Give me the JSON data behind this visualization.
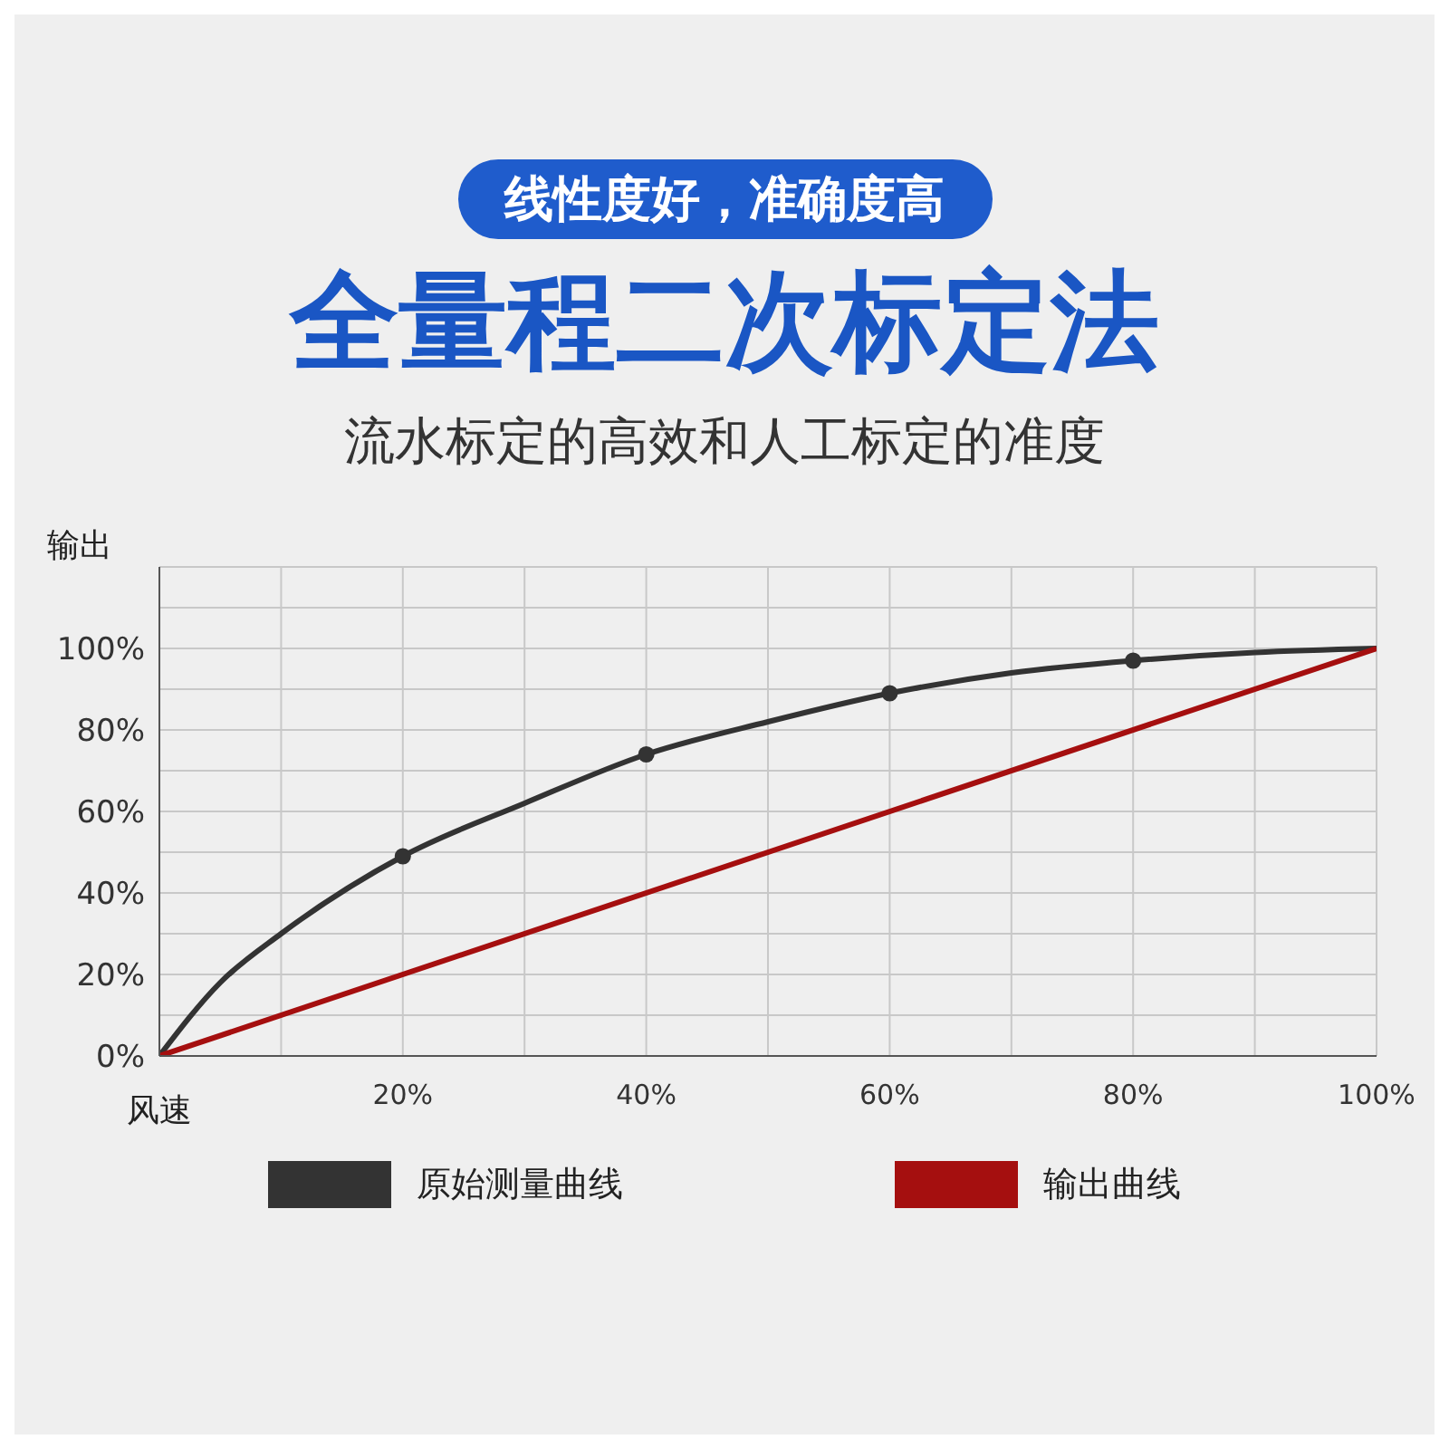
{
  "chart_data": {
    "type": "line",
    "title": "全量程二次标定法",
    "subtitle": "流水标定的高效和人工标定的准度",
    "annotations": [
      "线性度好，准确度高"
    ],
    "xlabel": "风速",
    "ylabel": "输出",
    "xlim": [
      0,
      100
    ],
    "xticks": [
      {
        "value": 10,
        "label": null
      },
      {
        "value": 20,
        "label": "20%"
      },
      {
        "value": 30,
        "label": null
      },
      {
        "value": 40,
        "label": "40%"
      },
      {
        "value": 50,
        "label": null
      },
      {
        "value": 60,
        "label": "60%"
      },
      {
        "value": 70,
        "label": null
      },
      {
        "value": 80,
        "label": "80%"
      },
      {
        "value": 90,
        "label": null
      },
      {
        "value": 100,
        "label": "100%"
      }
    ],
    "ylim": [
      0,
      120
    ],
    "yticks": [
      {
        "value": 0,
        "label": "0%"
      },
      {
        "value": 10,
        "label": null
      },
      {
        "value": 20,
        "label": "20%"
      },
      {
        "value": 30,
        "label": null
      },
      {
        "value": 40,
        "label": "40%"
      },
      {
        "value": 50,
        "label": null
      },
      {
        "value": 60,
        "label": "60%"
      },
      {
        "value": 70,
        "label": null
      },
      {
        "value": 80,
        "label": "80%"
      },
      {
        "value": 90,
        "label": null
      },
      {
        "value": 100,
        "label": "100%"
      },
      {
        "value": 110,
        "label": null
      },
      {
        "value": 120,
        "label": null
      }
    ],
    "grid": true,
    "legend": "bottom",
    "series": [
      {
        "name": "原始测量曲线",
        "marker": "none",
        "color": "#333333",
        "x": [
          0,
          5,
          10,
          20,
          30,
          40,
          50,
          60,
          70,
          80,
          90,
          100
        ],
        "values": [
          0,
          18,
          30,
          49,
          62,
          74,
          82,
          89,
          94,
          97,
          99,
          100
        ]
      },
      {
        "type": "scatter",
        "marker": "circle",
        "color": "#333333",
        "x": [
          20,
          40,
          60,
          80
        ],
        "values": [
          49,
          74,
          89,
          97
        ]
      },
      {
        "name": "输出曲线",
        "marker": "none",
        "color": "#a50f0f",
        "x": [
          0,
          100
        ],
        "values": [
          0,
          100
        ]
      }
    ]
  }
}
